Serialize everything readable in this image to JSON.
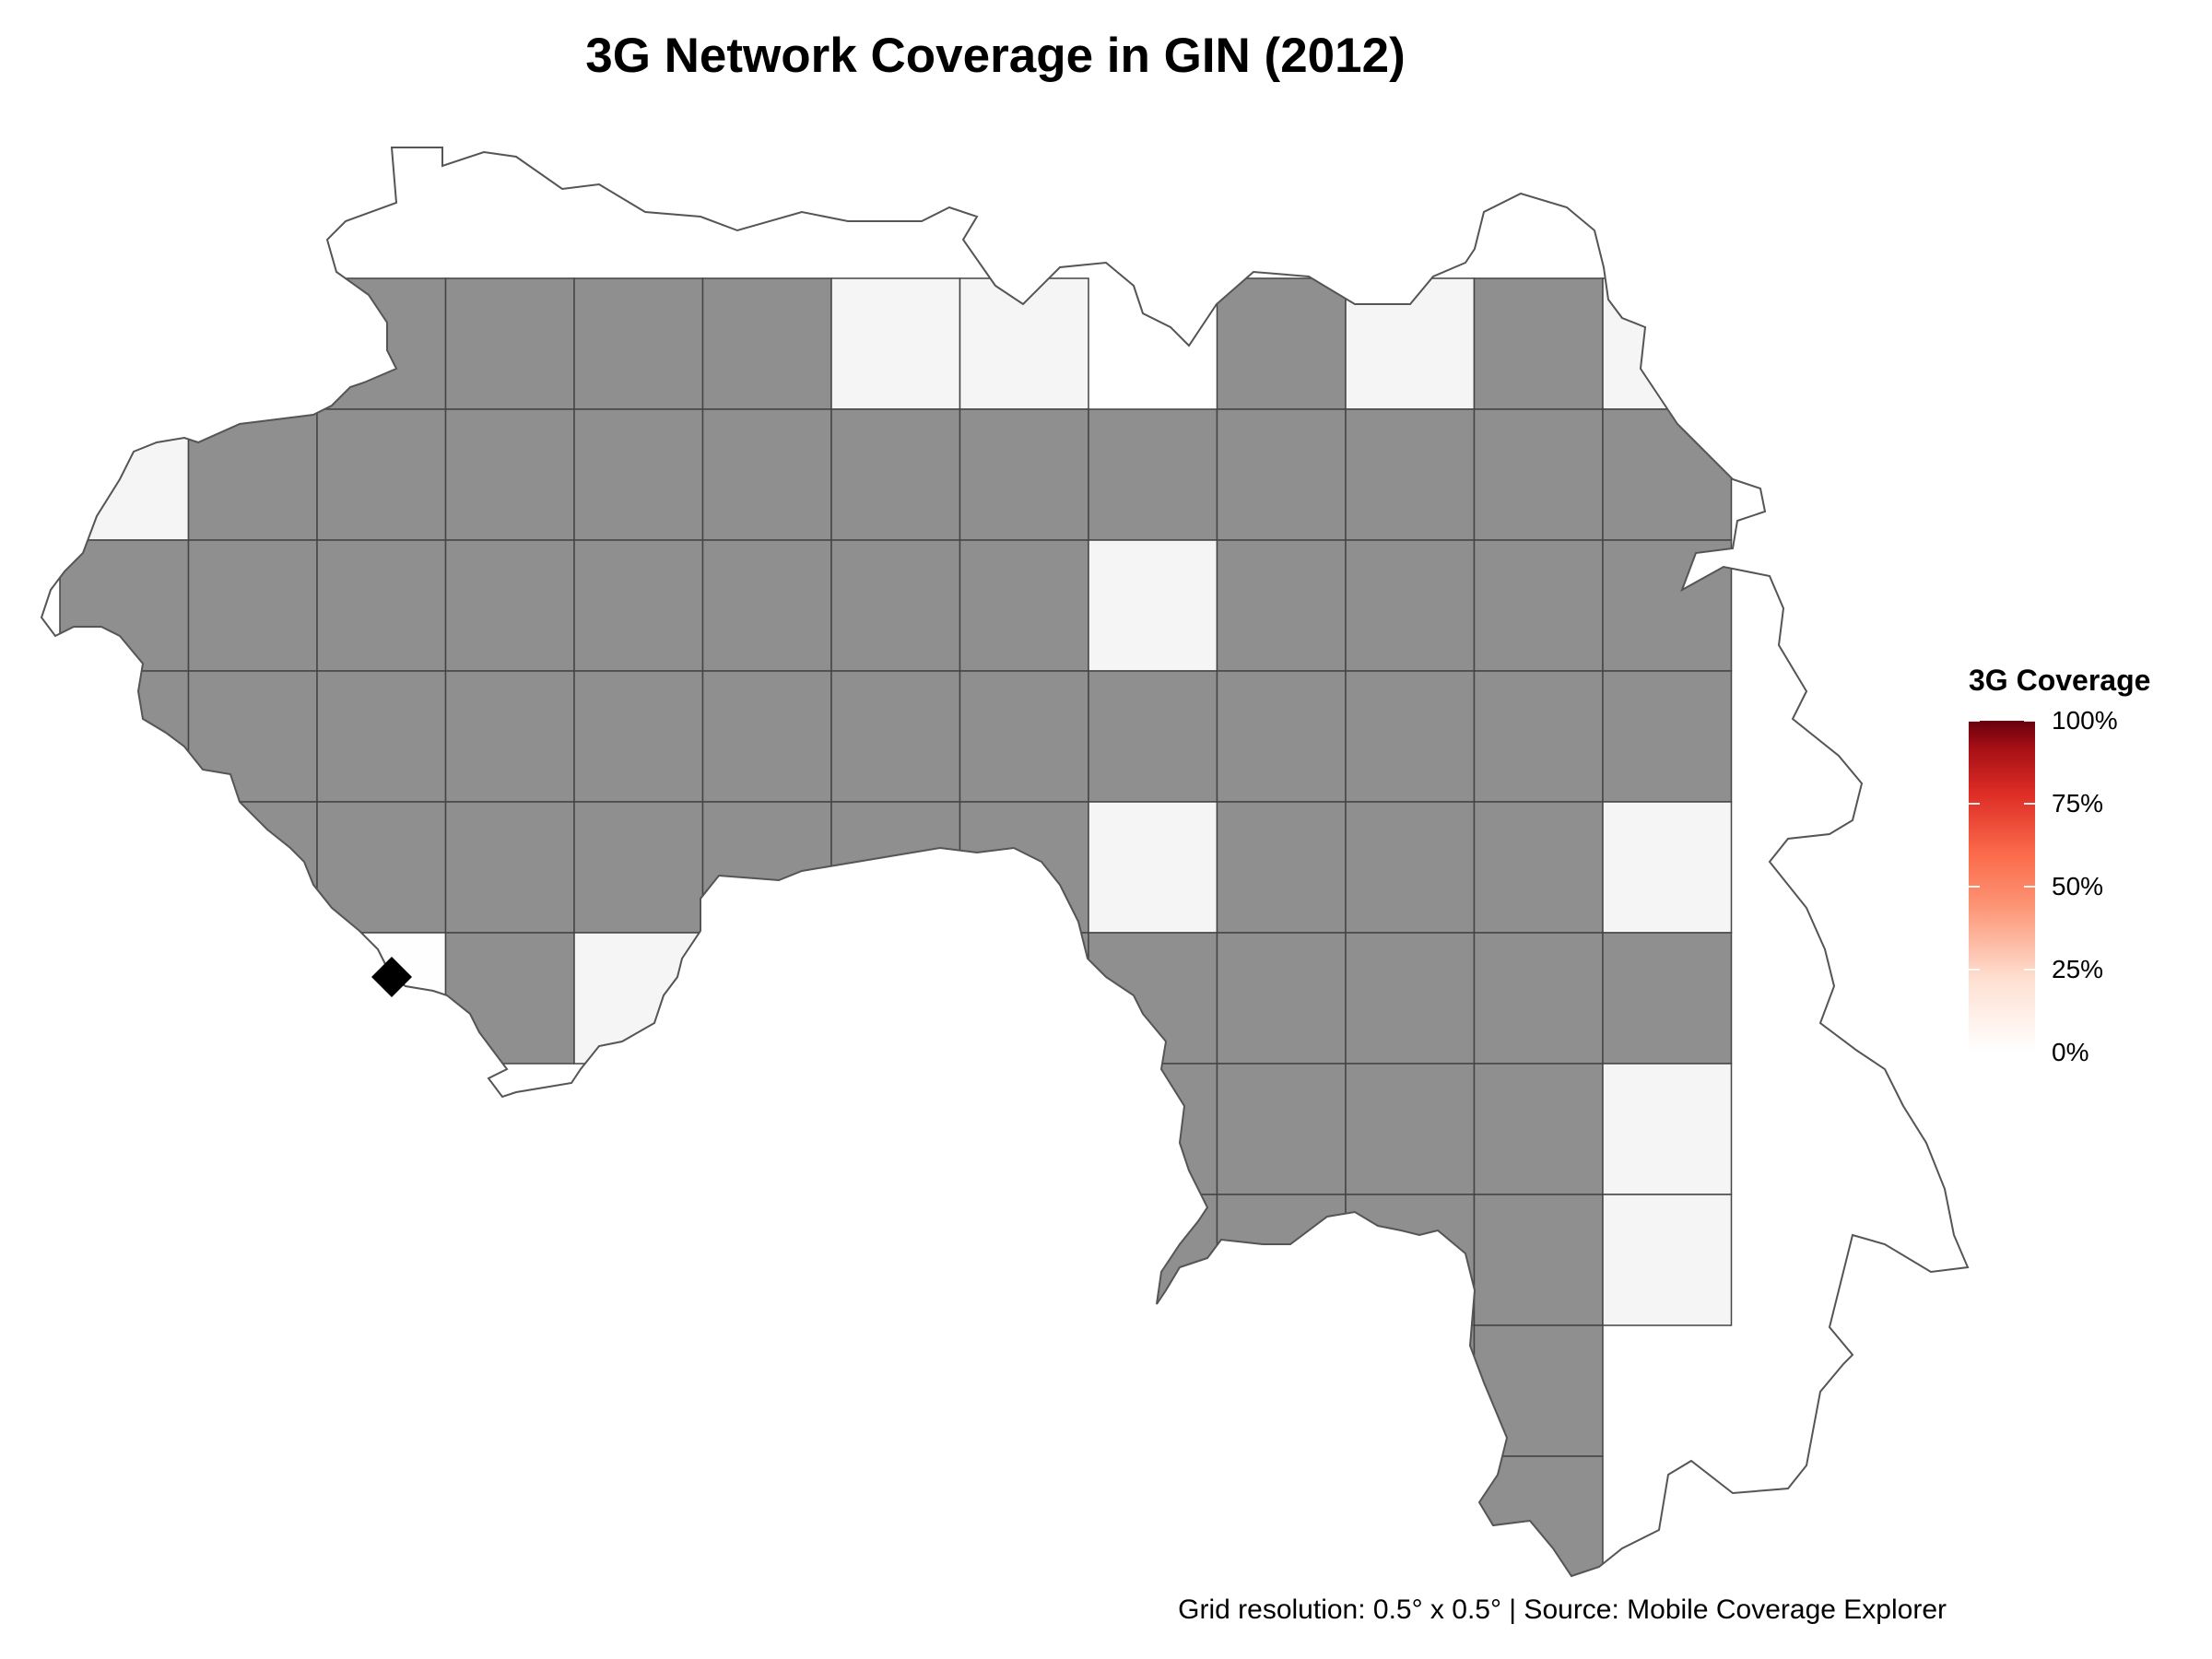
{
  "title": "3G Network Coverage in GIN (2012)",
  "caption": "Grid resolution: 0.5° x 0.5° | Source: Mobile Coverage Explorer",
  "legend": {
    "title": "3G Coverage",
    "ticks": [
      {
        "label": "100%",
        "value": 1.0
      },
      {
        "label": "75%",
        "value": 0.75
      },
      {
        "label": "50%",
        "value": 0.5
      },
      {
        "label": "25%",
        "value": 0.25
      },
      {
        "label": "0%",
        "value": 0.0
      }
    ]
  },
  "colors": {
    "no_data": "#8f8f8f",
    "zero_coverage": "#f5f5f5",
    "low_coverage": "#fefefe",
    "grid_line": "#444444",
    "outline": "#555555",
    "marker": "#000000"
  },
  "grid": {
    "rows": 11,
    "cols": 13,
    "cell_states": [
      [
        "zero",
        "nodata",
        "empty",
        "empty",
        "empty",
        "empty",
        "empty",
        "empty",
        "empty",
        "empty",
        "empty",
        "empty",
        "empty"
      ],
      [
        "nodata",
        "nodata",
        "nodata",
        "nodata",
        "nodata",
        "nodata",
        "zero",
        "zero",
        "empty",
        "nodata",
        "zero",
        "nodata",
        "zero"
      ],
      [
        "zero",
        "nodata",
        "nodata",
        "nodata",
        "nodata",
        "nodata",
        "nodata",
        "nodata",
        "nodata",
        "nodata",
        "nodata",
        "nodata",
        "nodata"
      ],
      [
        "nodata",
        "nodata",
        "nodata",
        "nodata",
        "nodata",
        "nodata",
        "nodata",
        "nodata",
        "zero",
        "nodata",
        "nodata",
        "nodata",
        "nodata"
      ],
      [
        "nodata",
        "nodata",
        "nodata",
        "nodata",
        "nodata",
        "nodata",
        "nodata",
        "nodata",
        "nodata",
        "nodata",
        "nodata",
        "nodata",
        "nodata"
      ],
      [
        "nodata",
        "nodata",
        "nodata",
        "nodata",
        "nodata",
        "nodata",
        "nodata",
        "nodata",
        "zero",
        "nodata",
        "nodata",
        "nodata",
        "zero"
      ],
      [
        "low",
        "low",
        "low",
        "nodata",
        "zero",
        "zero",
        "nodata",
        "nodata",
        "nodata",
        "nodata",
        "nodata",
        "nodata",
        "nodata"
      ],
      [
        "empty",
        "low",
        "low",
        "empty",
        "empty",
        "empty",
        "zero",
        "nodata",
        "nodata",
        "nodata",
        "nodata",
        "nodata",
        "zero"
      ],
      [
        "empty",
        "empty",
        "empty",
        "empty",
        "empty",
        "empty",
        "empty",
        "nodata",
        "nodata",
        "nodata",
        "nodata",
        "nodata",
        "zero"
      ],
      [
        "empty",
        "empty",
        "empty",
        "empty",
        "empty",
        "empty",
        "empty",
        "zero",
        "nodata",
        "nodata",
        "nodata",
        "nodata",
        "empty"
      ],
      [
        "empty",
        "empty",
        "empty",
        "empty",
        "empty",
        "empty",
        "empty",
        "empty",
        "empty",
        "nodata",
        "nodata",
        "nodata",
        "empty"
      ]
    ]
  },
  "marker": {
    "shape": "diamond",
    "label": "capital-marker"
  }
}
